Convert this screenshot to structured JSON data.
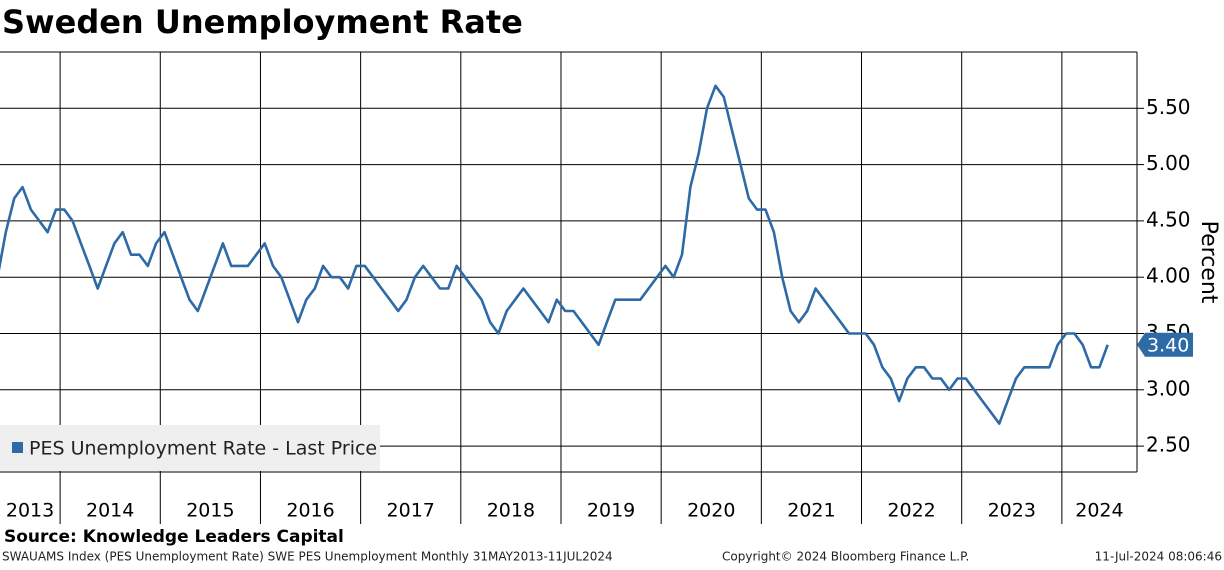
{
  "chart_data": {
    "type": "line",
    "title": "Sweden Unemployment Rate",
    "y_label": "Percent",
    "source": "Source: Knowledge Leaders Capital",
    "footer_left": "SWAUAMS Index (PES Unemployment Rate) SWE PES Unemployment  Monthly 31MAY2013-11JUL2024",
    "footer_center": "Copyright© 2024 Bloomberg Finance L.P.",
    "footer_right": "11-Jul-2024 08:06:46",
    "legend": "lower left",
    "grid": true,
    "xlim": [
      2013.4,
      2024.75
    ],
    "xticks": [
      2013,
      2014,
      2015,
      2016,
      2017,
      2018,
      2019,
      2020,
      2021,
      2022,
      2023,
      2024
    ],
    "ylim": [
      2.27,
      6.0
    ],
    "yticks": [
      {
        "value": 2.5,
        "label": "2.50"
      },
      {
        "value": 3,
        "label": "3.00"
      },
      {
        "value": 3.5,
        "label": "3.50"
      },
      {
        "value": 4,
        "label": "4.00"
      },
      {
        "value": 4.5,
        "label": "4.50"
      },
      {
        "value": 5,
        "label": "5.00"
      },
      {
        "value": 5.5,
        "label": "5.50"
      }
    ],
    "last_price": {
      "value": 3.4,
      "label": "3.40"
    },
    "x": [
      2013.375,
      2013.458,
      2013.542,
      2013.625,
      2013.708,
      2013.792,
      2013.875,
      2013.958,
      2014.042,
      2014.125,
      2014.208,
      2014.292,
      2014.375,
      2014.458,
      2014.542,
      2014.625,
      2014.708,
      2014.792,
      2014.875,
      2014.958,
      2015.042,
      2015.125,
      2015.208,
      2015.292,
      2015.375,
      2015.458,
      2015.542,
      2015.625,
      2015.708,
      2015.792,
      2015.875,
      2015.958,
      2016.042,
      2016.125,
      2016.208,
      2016.292,
      2016.375,
      2016.458,
      2016.542,
      2016.625,
      2016.708,
      2016.792,
      2016.875,
      2016.958,
      2017.042,
      2017.125,
      2017.208,
      2017.292,
      2017.375,
      2017.458,
      2017.542,
      2017.625,
      2017.708,
      2017.792,
      2017.875,
      2017.958,
      2018.042,
      2018.125,
      2018.208,
      2018.292,
      2018.375,
      2018.458,
      2018.542,
      2018.625,
      2018.708,
      2018.792,
      2018.875,
      2018.958,
      2019.042,
      2019.125,
      2019.208,
      2019.292,
      2019.375,
      2019.458,
      2019.542,
      2019.625,
      2019.708,
      2019.792,
      2019.875,
      2019.958,
      2020.042,
      2020.125,
      2020.208,
      2020.292,
      2020.375,
      2020.458,
      2020.542,
      2020.625,
      2020.708,
      2020.792,
      2020.875,
      2020.958,
      2021.042,
      2021.125,
      2021.208,
      2021.292,
      2021.375,
      2021.458,
      2021.542,
      2021.625,
      2021.708,
      2021.792,
      2021.875,
      2021.958,
      2022.042,
      2022.125,
      2022.208,
      2022.292,
      2022.375,
      2022.458,
      2022.542,
      2022.625,
      2022.708,
      2022.792,
      2022.875,
      2022.958,
      2023.042,
      2023.125,
      2023.208,
      2023.292,
      2023.375,
      2023.458,
      2023.542,
      2023.625,
      2023.708,
      2023.792,
      2023.875,
      2023.958,
      2024.042,
      2024.125,
      2024.208,
      2024.292,
      2024.375,
      2024.458
    ],
    "series": [
      {
        "name": "PES Unemployment Rate - Last Price",
        "color": "#2e6aa6",
        "values": [
          4.0,
          4.4,
          4.7,
          4.8,
          4.6,
          4.5,
          4.4,
          4.6,
          4.6,
          4.5,
          4.3,
          4.1,
          3.9,
          4.1,
          4.3,
          4.4,
          4.2,
          4.2,
          4.1,
          4.3,
          4.4,
          4.2,
          4.0,
          3.8,
          3.7,
          3.9,
          4.1,
          4.3,
          4.1,
          4.1,
          4.1,
          4.2,
          4.3,
          4.1,
          4.0,
          3.8,
          3.6,
          3.8,
          3.9,
          4.1,
          4.0,
          4.0,
          3.9,
          4.1,
          4.1,
          4.0,
          3.9,
          3.8,
          3.7,
          3.8,
          4.0,
          4.1,
          4.0,
          3.9,
          3.9,
          4.1,
          4.0,
          3.9,
          3.8,
          3.6,
          3.5,
          3.7,
          3.8,
          3.9,
          3.8,
          3.7,
          3.6,
          3.8,
          3.7,
          3.7,
          3.6,
          3.5,
          3.4,
          3.6,
          3.8,
          3.8,
          3.8,
          3.8,
          3.9,
          4.0,
          4.1,
          4.0,
          4.2,
          4.8,
          5.1,
          5.5,
          5.7,
          5.6,
          5.3,
          5.0,
          4.7,
          4.6,
          4.6,
          4.4,
          4.0,
          3.7,
          3.6,
          3.7,
          3.9,
          3.8,
          3.7,
          3.6,
          3.5,
          3.5,
          3.5,
          3.4,
          3.2,
          3.1,
          2.9,
          3.1,
          3.2,
          3.2,
          3.1,
          3.1,
          3.0,
          3.1,
          3.1,
          3.0,
          2.9,
          2.8,
          2.7,
          2.9,
          3.1,
          3.2,
          3.2,
          3.2,
          3.2,
          3.4,
          3.5,
          3.5,
          3.4,
          3.2,
          3.2,
          3.4
        ]
      }
    ]
  }
}
